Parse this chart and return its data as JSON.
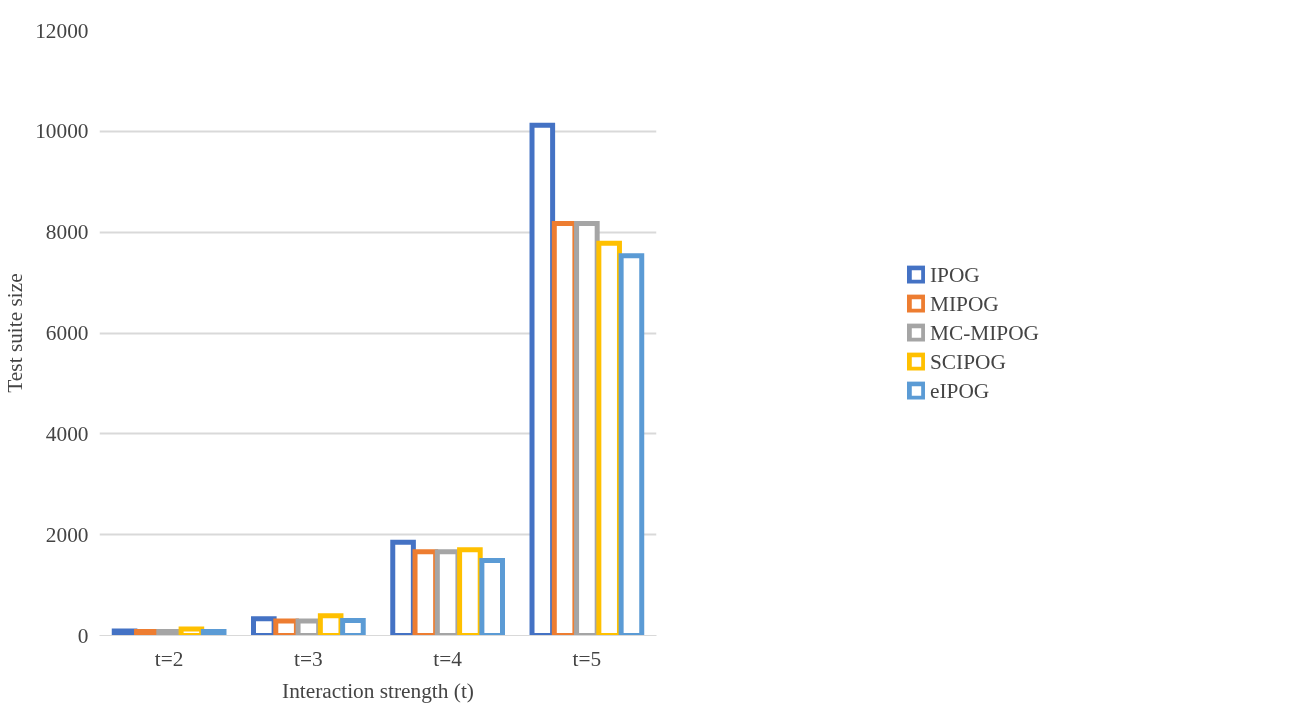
{
  "chart_data": {
    "type": "bar",
    "xlabel": "Interaction strength (t)",
    "ylabel": "Test suite size",
    "categories": [
      "t=2",
      "t=3",
      "t=4",
      "t=5"
    ],
    "series": [
      {
        "name": "IPOG",
        "color": "#4472c4",
        "values": [
          90,
          330,
          1850,
          10120
        ]
      },
      {
        "name": "MIPOG",
        "color": "#ed7d31",
        "values": [
          80,
          290,
          1660,
          8170
        ]
      },
      {
        "name": "MC-MIPOG",
        "color": "#a5a5a5",
        "values": [
          80,
          290,
          1660,
          8170
        ]
      },
      {
        "name": "SCIPOG",
        "color": "#ffc000",
        "values": [
          130,
          390,
          1700,
          7780
        ]
      },
      {
        "name": "eIPOG",
        "color": "#5b9bd5",
        "values": [
          80,
          300,
          1490,
          7530
        ]
      }
    ],
    "ylim": [
      0,
      12000
    ],
    "yticks": [
      0,
      2000,
      4000,
      6000,
      8000,
      10000,
      12000
    ],
    "grid": "y",
    "legend": "right"
  }
}
